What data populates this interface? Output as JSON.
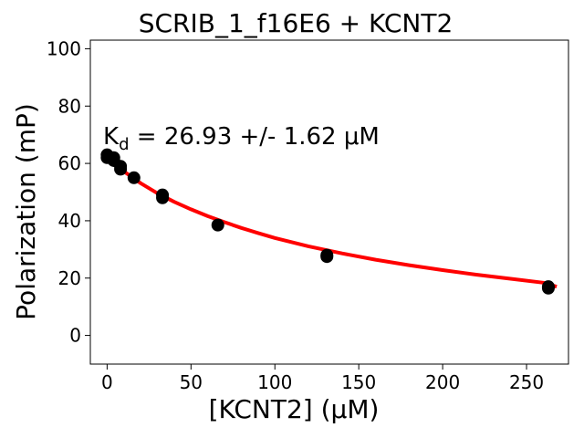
{
  "chart_data": {
    "type": "scatter",
    "title": "SCRIB_1_f16E6 + KCNT2",
    "xlabel": "[KCNT2] (μM)",
    "ylabel": "Polarization (mP)",
    "xlim": [
      -10,
      275
    ],
    "ylim": [
      -10,
      103
    ],
    "xticks": [
      0,
      50,
      100,
      150,
      200,
      250
    ],
    "yticks": [
      0,
      20,
      40,
      60,
      80,
      100
    ],
    "grid": false,
    "annotation": {
      "prefix": "K",
      "subscript": "d",
      "text": " = 26.93 +/- 1.62 μM"
    },
    "series": [
      {
        "kind": "points",
        "color": "#000000",
        "x": [
          0,
          0,
          2,
          4,
          4,
          8,
          8,
          16,
          33,
          33,
          66,
          131,
          131,
          263,
          263
        ],
        "y": [
          63,
          62,
          62,
          61,
          62,
          58,
          59,
          55,
          49,
          48,
          38.5,
          28,
          27.5,
          17,
          16.5
        ]
      },
      {
        "kind": "fit",
        "color": "#ff0000",
        "x": [
          0,
          10,
          20,
          30,
          40,
          50,
          60,
          70,
          80,
          90,
          100,
          120,
          140,
          160,
          180,
          200,
          220,
          240,
          260,
          268
        ],
        "y": [
          62.4,
          57.2,
          53.1,
          49.6,
          46.6,
          44.0,
          41.6,
          39.5,
          37.5,
          35.7,
          34.0,
          31.1,
          28.6,
          26.4,
          24.5,
          22.8,
          21.2,
          19.8,
          18.4,
          17.0
        ]
      }
    ]
  }
}
